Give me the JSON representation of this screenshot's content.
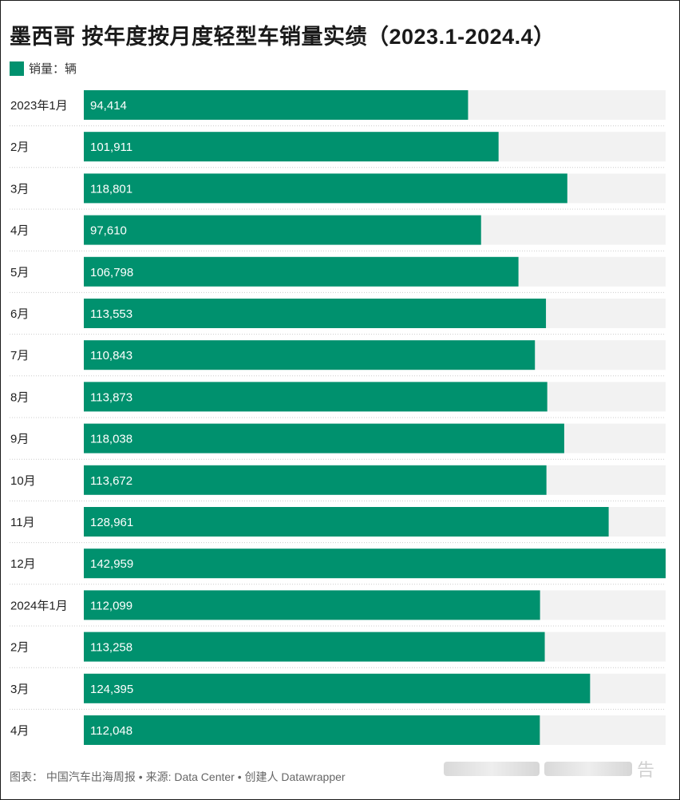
{
  "title": "墨西哥 按年度按月度轻型车销量实绩（2023.1-2024.4）",
  "legend": {
    "label": "销量：辆",
    "color": "#00916e"
  },
  "footer": {
    "text": "图表：  中国汽车出海周报 • 来源: Data Center • 创建人 Datawrapper",
    "watermark": "告"
  },
  "colors": {
    "bar": "#00916e",
    "track": "#f2f2f2",
    "divider": "#cccccc",
    "value_text": "#ffffff"
  },
  "chart_data": {
    "type": "bar",
    "orientation": "horizontal",
    "categories": [
      "2023年1月",
      "2月",
      "3月",
      "4月",
      "5月",
      "6月",
      "7月",
      "8月",
      "9月",
      "10月",
      "11月",
      "12月",
      "2024年1月",
      "2月",
      "3月",
      "4月"
    ],
    "value_labels": [
      "94,414",
      "101,911",
      "118,801",
      "97,610",
      "106,798",
      "113,553",
      "110,843",
      "113,873",
      "118,038",
      "113,672",
      "128,961",
      "142,959",
      "112,099",
      "113,258",
      "124,395",
      "112,048"
    ],
    "series": [
      {
        "name": "销量：辆",
        "values": [
          94414,
          101911,
          118801,
          97610,
          106798,
          113553,
          110843,
          113873,
          118038,
          113672,
          128961,
          142959,
          112099,
          113258,
          124395,
          112048
        ]
      }
    ],
    "xlim": [
      0,
      142959
    ],
    "grid": false,
    "legend_position": "top-left"
  }
}
